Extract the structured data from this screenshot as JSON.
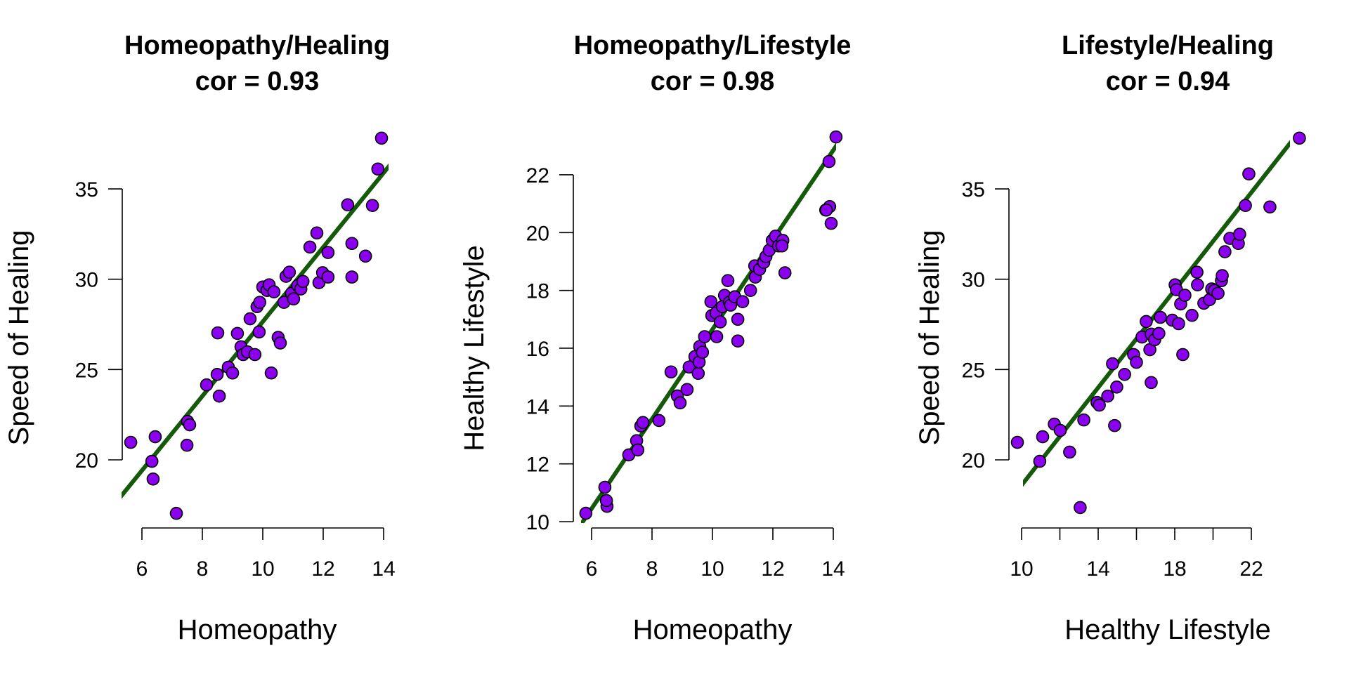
{
  "chart_data": [
    {
      "type": "scatter",
      "title": "Homeopathy/Healing",
      "subtitle": "cor = 0.93",
      "xlabel": "Homeopathy",
      "ylabel": "Speed of Healing",
      "xticks": [
        6,
        8,
        10,
        12,
        14
      ],
      "yticks": [
        20,
        25,
        30,
        35
      ],
      "xlim": [
        5.5,
        14.2
      ],
      "ylim": [
        17.0,
        38.0
      ],
      "point_color": "#8B00EE",
      "line_color": "#145A0A",
      "fit": {
        "slope": 2.06,
        "intercept": 7.05
      },
      "points": [
        [
          5.63,
          20.97
        ],
        [
          6.33,
          19.92
        ],
        [
          6.44,
          21.28
        ],
        [
          6.37,
          18.94
        ],
        [
          7.14,
          17.04
        ],
        [
          7.49,
          20.81
        ],
        [
          7.51,
          22.13
        ],
        [
          7.58,
          21.94
        ],
        [
          8.14,
          24.15
        ],
        [
          8.49,
          24.73
        ],
        [
          8.56,
          23.53
        ],
        [
          8.51,
          27.03
        ],
        [
          8.86,
          25.13
        ],
        [
          9.0,
          24.81
        ],
        [
          9.16,
          27.0
        ],
        [
          9.28,
          26.26
        ],
        [
          9.35,
          25.83
        ],
        [
          9.49,
          25.98
        ],
        [
          9.58,
          27.81
        ],
        [
          9.74,
          25.83
        ],
        [
          9.81,
          28.48
        ],
        [
          9.9,
          28.72
        ],
        [
          9.88,
          27.08
        ],
        [
          10.0,
          29.57
        ],
        [
          10.14,
          29.38
        ],
        [
          10.21,
          29.69
        ],
        [
          10.28,
          24.81
        ],
        [
          10.37,
          29.3
        ],
        [
          10.51,
          26.78
        ],
        [
          10.58,
          26.47
        ],
        [
          10.7,
          28.72
        ],
        [
          10.77,
          30.16
        ],
        [
          10.88,
          30.39
        ],
        [
          10.95,
          29.22
        ],
        [
          11.02,
          28.91
        ],
        [
          11.16,
          29.65
        ],
        [
          11.26,
          29.46
        ],
        [
          11.33,
          29.88
        ],
        [
          11.56,
          31.78
        ],
        [
          11.79,
          32.56
        ],
        [
          11.86,
          29.81
        ],
        [
          11.98,
          30.36
        ],
        [
          12.16,
          30.12
        ],
        [
          12.16,
          31.48
        ],
        [
          12.95,
          31.98
        ],
        [
          12.81,
          34.12
        ],
        [
          12.95,
          30.12
        ],
        [
          13.63,
          34.08
        ],
        [
          13.81,
          36.1
        ],
        [
          13.4,
          31.28
        ],
        [
          13.93,
          37.81
        ]
      ]
    },
    {
      "type": "scatter",
      "title": "Homeopathy/Lifestyle",
      "subtitle": "cor = 0.98",
      "xlabel": "Homeopathy",
      "ylabel": "Healthy Lifestyle",
      "xticks": [
        6,
        8,
        10,
        12,
        14
      ],
      "yticks": [
        10,
        12,
        14,
        16,
        18,
        20,
        22
      ],
      "xlim": [
        5.5,
        14.2
      ],
      "ylim": [
        9.9,
        23.3
      ],
      "point_color": "#8B00EE",
      "line_color": "#145A0A",
      "fit": {
        "slope": 1.55,
        "intercept": 1.15
      },
      "points": [
        [
          5.81,
          10.29
        ],
        [
          6.44,
          11.19
        ],
        [
          6.51,
          10.53
        ],
        [
          6.49,
          10.73
        ],
        [
          7.23,
          12.31
        ],
        [
          7.49,
          12.8
        ],
        [
          7.53,
          12.48
        ],
        [
          7.63,
          13.31
        ],
        [
          7.7,
          13.43
        ],
        [
          8.23,
          13.5
        ],
        [
          8.63,
          15.18
        ],
        [
          8.84,
          14.35
        ],
        [
          8.93,
          14.11
        ],
        [
          9.16,
          14.57
        ],
        [
          9.23,
          15.35
        ],
        [
          9.42,
          15.71
        ],
        [
          9.53,
          15.13
        ],
        [
          9.56,
          15.52
        ],
        [
          9.58,
          16.06
        ],
        [
          9.67,
          15.86
        ],
        [
          9.74,
          16.4
        ],
        [
          9.95,
          17.61
        ],
        [
          9.98,
          17.13
        ],
        [
          10.12,
          17.22
        ],
        [
          10.14,
          16.4
        ],
        [
          10.26,
          16.91
        ],
        [
          10.33,
          17.44
        ],
        [
          10.4,
          17.83
        ],
        [
          10.51,
          18.34
        ],
        [
          10.56,
          17.59
        ],
        [
          10.6,
          17.49
        ],
        [
          10.74,
          17.78
        ],
        [
          10.84,
          16.25
        ],
        [
          10.84,
          17.0
        ],
        [
          11.0,
          17.61
        ],
        [
          11.26,
          18.0
        ],
        [
          11.4,
          18.85
        ],
        [
          11.42,
          18.46
        ],
        [
          11.56,
          18.73
        ],
        [
          11.7,
          18.97
        ],
        [
          11.77,
          19.17
        ],
        [
          11.88,
          19.39
        ],
        [
          11.98,
          19.73
        ],
        [
          12.09,
          19.88
        ],
        [
          12.19,
          19.54
        ],
        [
          12.33,
          19.73
        ],
        [
          12.3,
          19.54
        ],
        [
          12.4,
          18.61
        ],
        [
          13.75,
          20.78
        ],
        [
          13.88,
          20.9
        ],
        [
          13.93,
          20.32
        ],
        [
          13.77,
          20.78
        ],
        [
          13.86,
          22.46
        ],
        [
          14.09,
          23.31
        ]
      ]
    },
    {
      "type": "scatter",
      "title": "Lifestyle/Healing",
      "subtitle": "cor = 0.94",
      "xlabel": "Healthy Lifestyle",
      "ylabel": "Speed of Healing",
      "xticks": [
        10,
        12,
        14,
        16,
        18,
        20,
        22
      ],
      "xticklabels": [
        "10",
        "",
        "14",
        "",
        "18",
        "",
        "22"
      ],
      "yticks": [
        20,
        25,
        30,
        35
      ],
      "xlim": [
        9.9,
        24.0
      ],
      "ylim": [
        17.0,
        38.0
      ],
      "point_color": "#8B00EE",
      "line_color": "#145A0A",
      "fit": {
        "slope": 1.35,
        "intercept": 5.1
      },
      "points": [
        [
          9.78,
          20.97
        ],
        [
          10.95,
          19.92
        ],
        [
          11.1,
          21.28
        ],
        [
          11.71,
          21.98
        ],
        [
          12.02,
          21.63
        ],
        [
          12.51,
          20.43
        ],
        [
          13.06,
          17.36
        ],
        [
          13.25,
          22.21
        ],
        [
          13.94,
          23.18
        ],
        [
          14.06,
          23.03
        ],
        [
          14.5,
          23.53
        ],
        [
          14.75,
          25.32
        ],
        [
          14.86,
          21.9
        ],
        [
          14.97,
          24.03
        ],
        [
          15.38,
          24.73
        ],
        [
          15.85,
          25.83
        ],
        [
          16.0,
          25.4
        ],
        [
          16.29,
          26.8
        ],
        [
          16.51,
          27.66
        ],
        [
          16.7,
          26.1
        ],
        [
          16.77,
          26.96
        ],
        [
          16.77,
          24.28
        ],
        [
          16.95,
          26.65
        ],
        [
          17.17,
          27.0
        ],
        [
          17.25,
          27.89
        ],
        [
          17.87,
          27.73
        ],
        [
          18.02,
          29.69
        ],
        [
          18.09,
          29.42
        ],
        [
          18.2,
          27.54
        ],
        [
          18.31,
          28.63
        ],
        [
          18.42,
          25.83
        ],
        [
          18.53,
          29.11
        ],
        [
          18.9,
          28.0
        ],
        [
          19.16,
          30.39
        ],
        [
          19.19,
          29.69
        ],
        [
          19.52,
          28.67
        ],
        [
          19.82,
          28.87
        ],
        [
          19.93,
          29.46
        ],
        [
          20.07,
          29.38
        ],
        [
          20.26,
          29.22
        ],
        [
          20.44,
          29.92
        ],
        [
          20.48,
          30.2
        ],
        [
          20.62,
          31.52
        ],
        [
          20.88,
          32.26
        ],
        [
          21.32,
          31.98
        ],
        [
          21.39,
          32.49
        ],
        [
          21.69,
          34.08
        ],
        [
          21.87,
          35.83
        ],
        [
          22.97,
          34.0
        ],
        [
          24.51,
          37.81
        ]
      ]
    }
  ]
}
